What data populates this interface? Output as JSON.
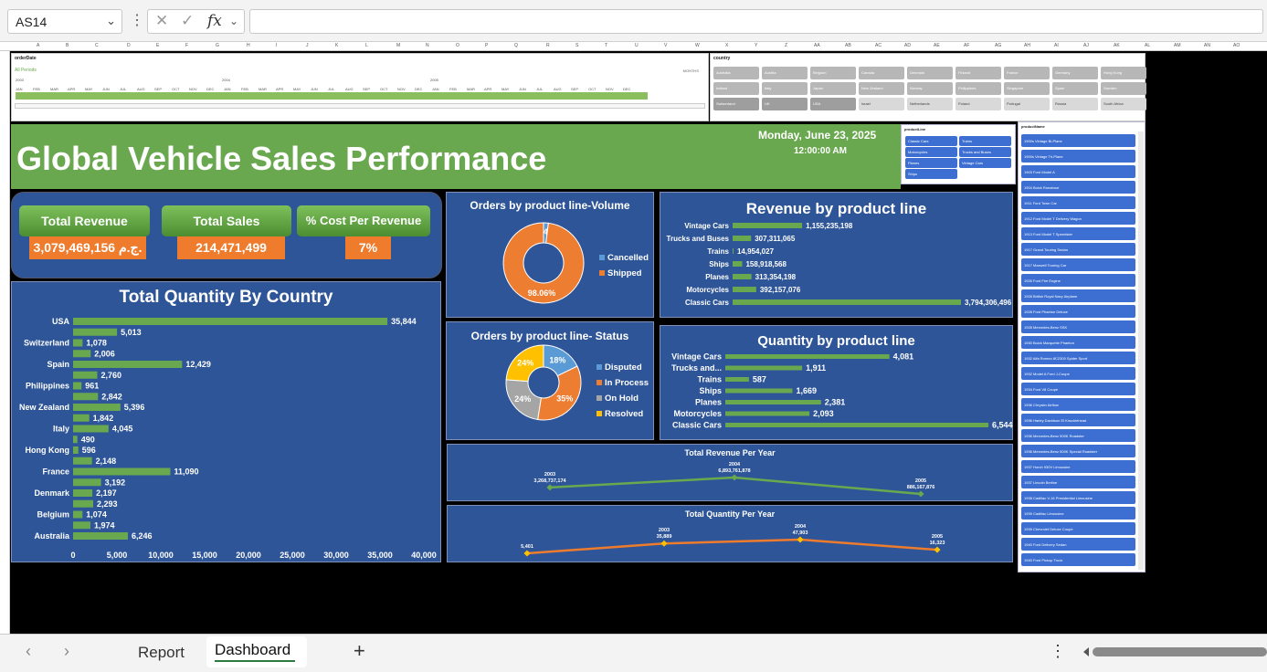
{
  "formula_bar": {
    "name_box": "AS14",
    "fx_label": "fx",
    "cancel_icon": "✕",
    "enter_icon": "✓"
  },
  "column_headers": [
    "A",
    "B",
    "C",
    "D",
    "E",
    "F",
    "G",
    "H",
    "I",
    "J",
    "K",
    "L",
    "M",
    "N",
    "O",
    "P",
    "Q",
    "R",
    "S",
    "T",
    "U",
    "V",
    "W",
    "X",
    "Y",
    "Z",
    "AA",
    "AB",
    "AC",
    "AD",
    "AE",
    "AF",
    "AG",
    "AH",
    "AI",
    "AJ",
    "AK",
    "AL",
    "AM",
    "AN",
    "AO",
    "AP"
  ],
  "timeline": {
    "title": "orderDate",
    "period_label": "All Periods",
    "level_label": "MONTHS",
    "years": [
      "2003",
      "2004",
      "2005"
    ],
    "months": [
      "JAN",
      "FEB",
      "MAR",
      "APR",
      "MAY",
      "JUN",
      "JUL",
      "AUG",
      "SEP",
      "OCT",
      "NOV",
      "DEC",
      "JAN",
      "FEB",
      "MAR",
      "APR",
      "MAY",
      "JUN",
      "JUL",
      "AUG",
      "SEP",
      "OCT",
      "NOV",
      "DEC",
      "JAN",
      "FEB",
      "MAR",
      "APR",
      "MAY",
      "JUN",
      "JUL",
      "AUG",
      "SEP",
      "OCT",
      "NOV",
      "DEC"
    ]
  },
  "country_slicer": {
    "title": "country",
    "items": [
      "Australia",
      "Austria",
      "Belgium",
      "Canada",
      "Denmark",
      "Finland",
      "France",
      "Germany",
      "Hong Kong",
      "Ireland",
      "Italy",
      "Japan",
      "New Zealand",
      "Norway",
      "Philippines",
      "Singapore",
      "Spain",
      "Sweden",
      "Switzerland",
      "UK",
      "USA",
      "Israel",
      "Netherlands",
      "Poland",
      "Portugal",
      "Russia",
      "South Africa"
    ]
  },
  "banner": {
    "title": "Global Vehicle Sales Performance",
    "date": "Monday, June 23, 2025",
    "time": "12:00:00 AM"
  },
  "productline_slicer": {
    "title": "productLine",
    "items": [
      "Classic Cars",
      "Motorcycles",
      "Planes",
      "Ships",
      "Trains",
      "Trucks and Buses",
      "Vintage Cars"
    ]
  },
  "productname_slicer": {
    "title": "productName",
    "items": [
      "1900s Vintage Bi-Plane",
      "1900s Vintage Tri-Plane",
      "1903 Ford Model A",
      "1904 Buick Runabout",
      "1911 Ford Town Car",
      "1912 Ford Model T Delivery Wagon",
      "1913 Ford Model T Speedster",
      "1917 Grand Touring Sedan",
      "1917 Maxwell Touring Car",
      "1926 Ford Fire Engine",
      "1928 British Royal Navy Airplane",
      "1928 Ford Phaeton Deluxe",
      "1928 Mercedes-Benz SSK",
      "1930 Buick Marquette Phaeton",
      "1932 Alfa Romeo 8C2300 Spider Sport",
      "1932 Model A Ford J-Coupe",
      "1934 Ford V8 Coupe",
      "1936 Chrysler Airflow",
      "1936 Harley Davidson El Knucklehead",
      "1936 Mercedes-Benz 500K Roadster",
      "1936 Mercedes-Benz 500K Special Roadster",
      "1937 Horch 930V Limousine",
      "1937 Lincoln Berline",
      "1938 Cadillac V-16 Presidential Limousine",
      "1939 Cadillac Limousine",
      "1939 Chevrolet Deluxe Coupe",
      "1940 Ford Delivery Sedan",
      "1940 Ford Pickup Truck"
    ]
  },
  "kpis": [
    {
      "label": "Total Revenue",
      "value": "3,079,469,156 ج.م."
    },
    {
      "label": "Total Sales",
      "value": "214,471,499"
    },
    {
      "label": "% Cost Per Revenue",
      "value": "7%"
    }
  ],
  "colors": {
    "green": "#6aa84f",
    "panel_blue": "#2e5597",
    "orange": "#ef7b2c",
    "bar_green": "#6aa84f"
  },
  "chart_data": [
    {
      "id": "quantity_by_country",
      "type": "bar",
      "orientation": "horizontal",
      "title": "Total Quantity By Country",
      "category_labels": [
        "USA",
        "",
        "Switzerland",
        "",
        "Spain",
        "",
        "Philippines",
        "",
        "New Zealand",
        "",
        "Italy",
        "",
        "Hong Kong",
        "",
        "France",
        "",
        "Denmark",
        "",
        "Belgium",
        "",
        "Australia"
      ],
      "values": [
        35844,
        5013,
        1078,
        2006,
        12429,
        2760,
        961,
        2842,
        5396,
        1842,
        4045,
        490,
        596,
        2148,
        11090,
        3192,
        2197,
        2293,
        1074,
        1974,
        6246
      ],
      "value_labels": [
        "35,844",
        "5,013",
        "1,078",
        "2,006",
        "12,429",
        "2,760",
        "961",
        "2,842",
        "5,396",
        "1,842",
        "4,045",
        "490",
        "596",
        "2,148",
        "11,090",
        "3,192",
        "2,197",
        "2,293",
        "1,074",
        "1,974",
        "6,246"
      ],
      "xlim": [
        0,
        40000
      ],
      "x_ticks": [
        "0",
        "5,000",
        "10,000",
        "15,000",
        "20,000",
        "25,000",
        "30,000",
        "35,000",
        "40,000"
      ]
    },
    {
      "id": "orders_volume",
      "type": "pie",
      "donut": true,
      "title": "Orders by product line-Volume",
      "slices": [
        {
          "name": "Cancelled",
          "value": 1.94,
          "label": "1.94%",
          "color": "#5b9bd5"
        },
        {
          "name": "Shipped",
          "value": 98.06,
          "label": "98.06%",
          "color": "#ed7d31"
        }
      ]
    },
    {
      "id": "orders_status",
      "type": "pie",
      "donut": true,
      "title": "Orders by product line- Status",
      "slices": [
        {
          "name": "Disputed",
          "value": 18,
          "label": "18%",
          "color": "#5b9bd5"
        },
        {
          "name": "In Process",
          "value": 35,
          "label": "35%",
          "color": "#ed7d31"
        },
        {
          "name": "On Hold",
          "value": 24,
          "label": "24%",
          "color": "#a5a5a5"
        },
        {
          "name": "Resolved",
          "value": 24,
          "label": "24%",
          "color": "#ffc000"
        }
      ]
    },
    {
      "id": "revenue_by_product_line",
      "type": "bar",
      "orientation": "horizontal",
      "title": "Revenue by product line",
      "categories": [
        "Vintage Cars",
        "Trucks and Buses",
        "Trains",
        "Ships",
        "Planes",
        "Motorcycles",
        "Classic Cars"
      ],
      "values": [
        1155235198,
        307311065,
        14954027,
        158918568,
        313354198,
        392157076,
        3794306496
      ],
      "value_labels": [
        "1,155,235,198",
        "307,311,065",
        "14,954,027",
        "158,918,568",
        "313,354,198",
        "392,157,076",
        "3,794,306,496"
      ]
    },
    {
      "id": "quantity_by_product_line",
      "type": "bar",
      "orientation": "horizontal",
      "title": "Quantity by product line",
      "categories": [
        "Vintage Cars",
        "Trucks and...",
        "Trains",
        "Ships",
        "Planes",
        "Motorcycles",
        "Classic Cars"
      ],
      "values": [
        4081,
        1911,
        587,
        1669,
        2381,
        2093,
        6544
      ],
      "value_labels": [
        "4,081",
        "1,911",
        "587",
        "1,669",
        "2,381",
        "2,093",
        "6,544"
      ]
    },
    {
      "id": "revenue_per_year",
      "type": "line",
      "title": "Total Revenue Per Year",
      "x": [
        "2003",
        "2004",
        "2005"
      ],
      "values": [
        3268737174,
        6893761878,
        886167876
      ],
      "value_labels": [
        "3,268,737,174",
        "6,893,761,878",
        "886,167,876"
      ]
    },
    {
      "id": "quantity_per_year",
      "type": "line",
      "title": "Total Quantity Per Year",
      "x": [
        "",
        "2003",
        "2004",
        "2005"
      ],
      "values": [
        5401,
        35889,
        47903,
        16323
      ],
      "value_labels": [
        "5,401",
        "35,889",
        "47,903",
        "16,323"
      ]
    }
  ],
  "sheet_tabs": {
    "tabs": [
      "Report",
      "Dashboard"
    ],
    "active": "Dashboard",
    "add_label": "+",
    "menu_label": "⋮"
  }
}
